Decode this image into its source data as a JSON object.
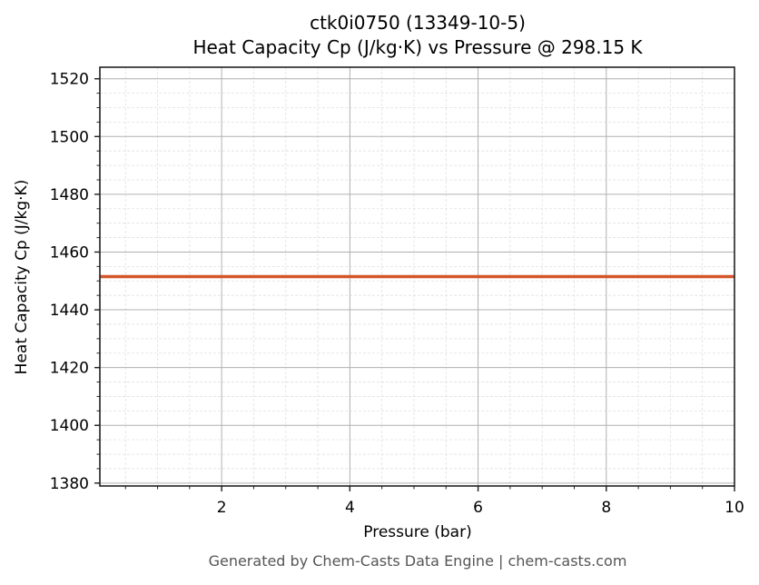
{
  "chart_data": {
    "type": "line",
    "title": "ctk0i0750 (13349-10-5)",
    "subtitle": "Heat Capacity Cp (J/kg·K) vs Pressure @ 298.15 K",
    "xlabel": "Pressure (bar)",
    "ylabel": "Heat Capacity Cp (J/kg·K)",
    "xlim": [
      0.1,
      10
    ],
    "ylim": [
      1379,
      1524
    ],
    "x_ticks": [
      2,
      4,
      6,
      8,
      10
    ],
    "y_ticks": [
      1380,
      1400,
      1420,
      1440,
      1460,
      1480,
      1500,
      1520
    ],
    "grid": true,
    "minor_grid": true,
    "series": [
      {
        "name": "Cp",
        "color": "#d4562a",
        "x": [
          0.1,
          10
        ],
        "values": [
          1451.5,
          1451.5
        ]
      }
    ]
  },
  "footer": "Generated by Chem-Casts Data Engine | chem-casts.com"
}
